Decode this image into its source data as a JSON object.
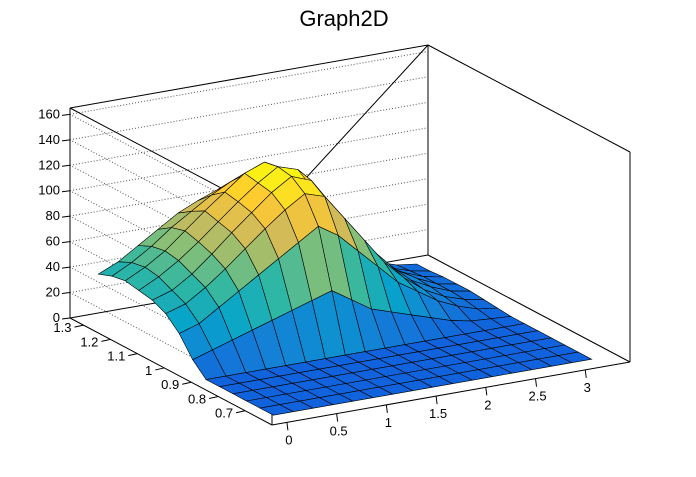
{
  "chart_data": {
    "type": "surface",
    "title": "Graph2D",
    "xlabel": "",
    "ylabel": "",
    "zlabel": "",
    "xlim": [
      -0.15,
      3.45
    ],
    "ylim": [
      0.6,
      1.35
    ],
    "zlim": [
      0,
      165
    ],
    "x_ticks": [
      "0",
      "0.5",
      "1",
      "1.5",
      "2",
      "2.5",
      "3"
    ],
    "x_tick_values": [
      0,
      0.5,
      1,
      1.5,
      2,
      2.5,
      3
    ],
    "y_ticks": [
      "0.7",
      "0.8",
      "0.9",
      "1",
      "1.1",
      "1.2",
      "1.3"
    ],
    "y_tick_values": [
      0.7,
      0.8,
      0.9,
      1.0,
      1.1,
      1.2,
      1.3
    ],
    "z_ticks": [
      "0",
      "20",
      "40",
      "60",
      "80",
      "100",
      "120",
      "140",
      "160"
    ],
    "z_tick_values": [
      0,
      20,
      40,
      60,
      80,
      100,
      120,
      140,
      160
    ],
    "grid": true,
    "palette": [
      "#352a87",
      "#0f5cdd",
      "#1481d6",
      "#06a4ca",
      "#2eb7a4",
      "#87bf77",
      "#d1bb59",
      "#fec832",
      "#f9fb0e"
    ],
    "surface_x": [
      0,
      0.2,
      0.4,
      0.6,
      0.8,
      1.0,
      1.2,
      1.4,
      1.6,
      1.8,
      2.0,
      2.2,
      2.4,
      2.6,
      2.8,
      3.0,
      3.2
    ],
    "surface_y": [
      0.65,
      0.7,
      0.75,
      0.8,
      0.85,
      0.9,
      0.95,
      1.0,
      1.05,
      1.1,
      1.15,
      1.2,
      1.25,
      1.3
    ],
    "surface_z": [
      [
        0,
        0,
        0,
        0,
        0,
        0,
        0,
        0,
        0,
        0,
        0,
        0,
        0,
        0,
        0,
        0,
        0
      ],
      [
        0,
        0,
        0,
        0,
        0,
        0,
        0,
        0,
        0,
        0,
        0,
        0,
        0,
        0,
        0,
        0,
        0
      ],
      [
        0,
        0,
        0,
        0,
        0,
        0,
        0,
        0,
        0,
        0,
        0,
        0,
        0,
        0,
        0,
        0,
        0
      ],
      [
        0,
        0,
        0,
        0,
        0,
        0,
        0,
        0,
        0,
        0,
        0,
        0,
        0,
        0,
        0,
        0,
        0
      ],
      [
        0,
        0,
        0,
        0,
        0,
        0,
        0,
        0,
        0,
        0,
        0,
        0,
        0,
        0,
        0,
        0,
        0
      ],
      [
        0,
        0,
        0,
        0,
        0,
        0,
        0,
        0,
        0,
        0,
        0,
        0,
        0,
        0,
        0,
        0,
        0
      ],
      [
        10,
        15,
        20,
        25,
        30,
        35,
        40,
        45,
        35,
        25,
        20,
        15,
        10,
        5,
        2,
        1,
        0
      ],
      [
        25,
        30,
        40,
        50,
        60,
        70,
        80,
        90,
        80,
        65,
        50,
        35,
        25,
        15,
        8,
        3,
        1
      ],
      [
        35,
        40,
        50,
        62,
        75,
        88,
        100,
        110,
        105,
        85,
        65,
        45,
        30,
        18,
        10,
        5,
        2
      ],
      [
        40,
        45,
        55,
        68,
        82,
        95,
        108,
        118,
        112,
        90,
        70,
        50,
        34,
        20,
        12,
        6,
        3
      ],
      [
        42,
        50,
        60,
        72,
        85,
        98,
        110,
        120,
        115,
        92,
        72,
        52,
        36,
        22,
        13,
        6,
        3
      ],
      [
        44,
        52,
        62,
        75,
        88,
        100,
        112,
        118,
        110,
        88,
        68,
        50,
        34,
        20,
        12,
        6,
        3
      ],
      [
        42,
        50,
        60,
        72,
        82,
        92,
        100,
        105,
        98,
        80,
        62,
        45,
        30,
        18,
        10,
        5,
        2
      ],
      [
        38,
        45,
        55,
        65,
        75,
        82,
        88,
        90,
        85,
        70,
        55,
        40,
        28,
        16,
        9,
        4,
        2
      ]
    ]
  }
}
